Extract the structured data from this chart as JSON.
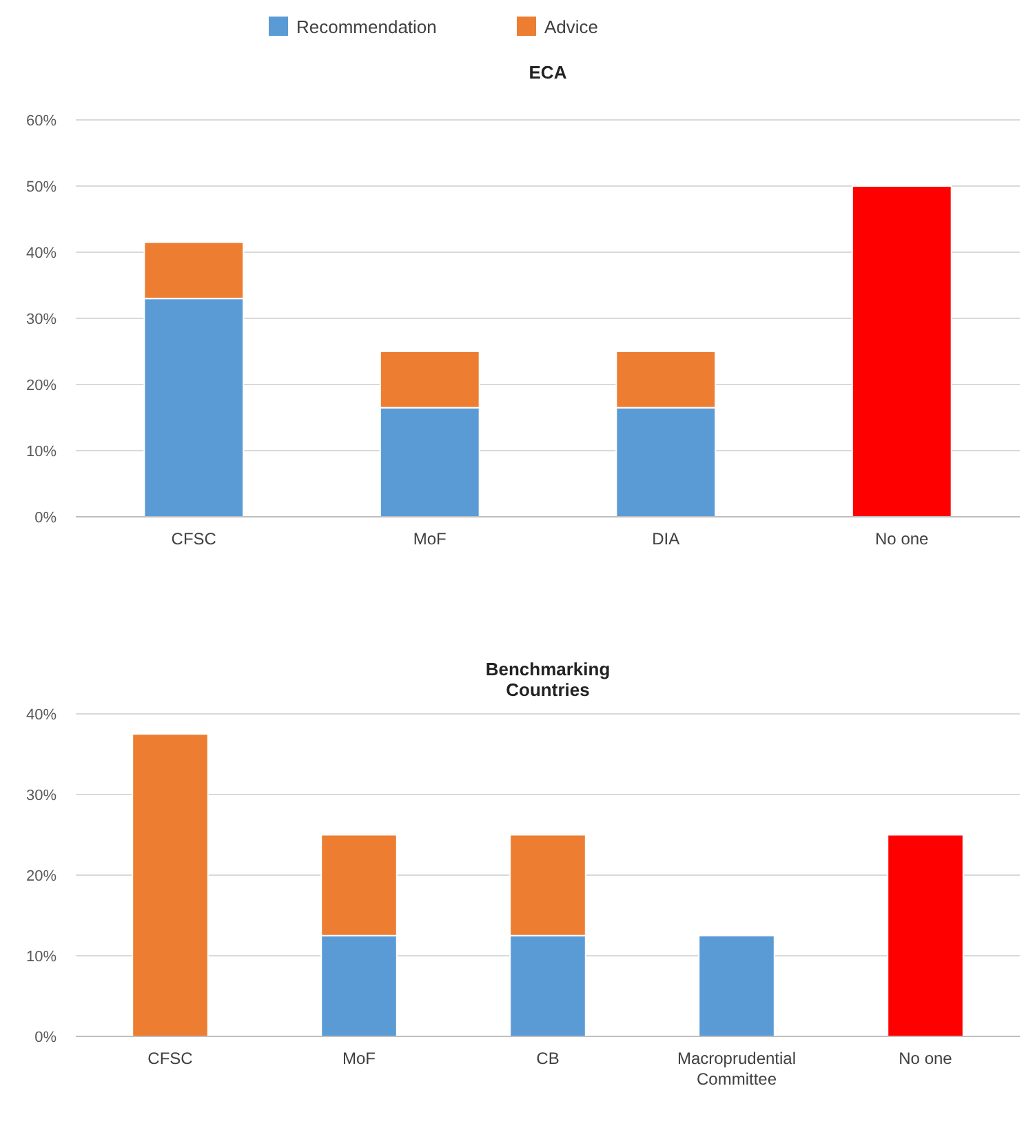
{
  "chart_data": [
    {
      "type": "bar",
      "title": "ECA",
      "stacked": true,
      "legend": "top",
      "grid": "y",
      "categories": [
        "CFSC",
        "MoF",
        "DIA",
        "No one"
      ],
      "series": [
        {
          "name": "Recommendation",
          "color": "#5b9bd5",
          "values": [
            33,
            16.5,
            16.5,
            null
          ]
        },
        {
          "name": "Advice",
          "color": "#ed7d31",
          "values": [
            8.5,
            8.5,
            8.5,
            null
          ]
        },
        {
          "color": "#ff0000",
          "values": [
            null,
            null,
            null,
            50
          ]
        }
      ],
      "ylim": [
        0,
        60
      ],
      "yticks": [
        {
          "value": 0,
          "label": "0%"
        },
        {
          "value": 10,
          "label": "10%"
        },
        {
          "value": 20,
          "label": "20%"
        },
        {
          "value": 30,
          "label": "30%"
        },
        {
          "value": 40,
          "label": "40%"
        },
        {
          "value": 50,
          "label": "50%"
        },
        {
          "value": 60,
          "label": "60%"
        }
      ]
    },
    {
      "type": "bar",
      "title": "Benchmarking Countries",
      "stacked": true,
      "grid": "y",
      "categories": [
        "CFSC",
        "MoF",
        "CB",
        "Macroprudential Committee",
        "No one"
      ],
      "series": [
        {
          "color": "#5b9bd5",
          "values": [
            null,
            12.5,
            12.5,
            12.5,
            null
          ]
        },
        {
          "color": "#ed7d31",
          "values": [
            37.5,
            12.5,
            12.5,
            null,
            null
          ]
        },
        {
          "color": "#ff0000",
          "values": [
            null,
            null,
            null,
            null,
            25
          ]
        }
      ],
      "ylim": [
        0,
        40
      ],
      "yticks": [
        {
          "value": 0,
          "label": "0%"
        },
        {
          "value": 10,
          "label": "10%"
        },
        {
          "value": 20,
          "label": "20%"
        },
        {
          "value": 30,
          "label": "30%"
        },
        {
          "value": 40,
          "label": "40%"
        }
      ]
    }
  ]
}
